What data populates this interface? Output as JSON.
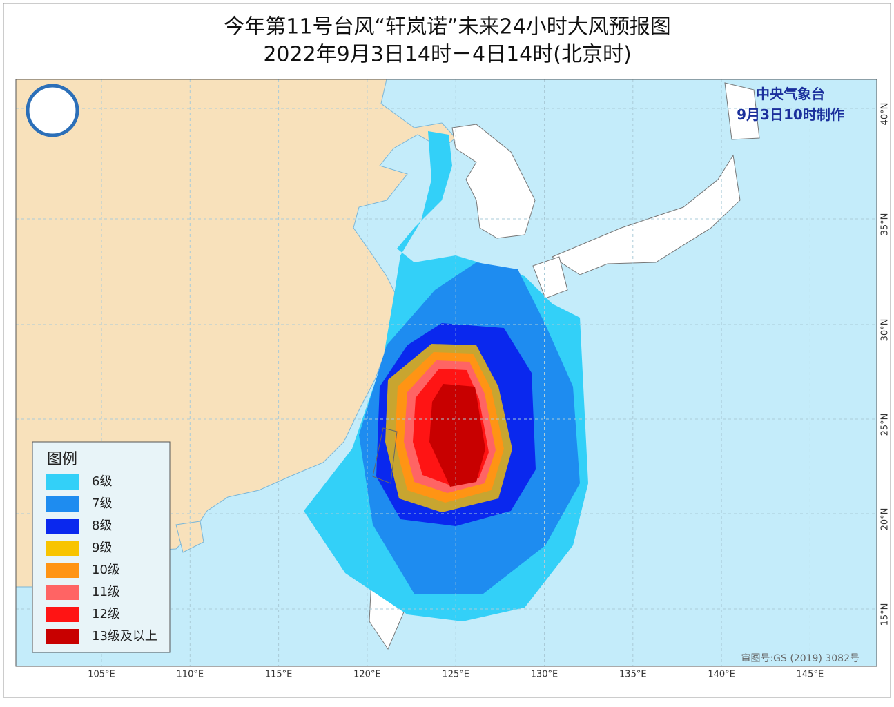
{
  "header": {
    "title": "今年第11号台风“轩岚诺”未来24小时大风预报图",
    "subtitle": "2022年9月3日14时－4日14时(北京时)"
  },
  "issuer": {
    "agency": "中央气象台",
    "issued": "9月3日10时制作"
  },
  "legend": {
    "title": "图例",
    "items": [
      {
        "label": "6级",
        "color": "#33d0f8"
      },
      {
        "label": "7级",
        "color": "#1e8cf0"
      },
      {
        "label": "8级",
        "color": "#0a28ee"
      },
      {
        "label": "9级",
        "color": "#f8c400"
      },
      {
        "label": "10级",
        "color": "#ff9414"
      },
      {
        "label": "11级",
        "color": "#ff6464"
      },
      {
        "label": "12级",
        "color": "#ff1414"
      },
      {
        "label": "13级及以上",
        "color": "#c80000"
      }
    ]
  },
  "axes": {
    "longitudes": [
      "105°E",
      "110°E",
      "115°E",
      "120°E",
      "125°E",
      "130°E",
      "135°E",
      "140°E",
      "145°E"
    ],
    "latitudes": [
      "40°N",
      "35°N",
      "30°N",
      "25°N",
      "20°N",
      "15°N"
    ]
  },
  "footer": {
    "approval": "审图号:GS (2019) 3082号"
  }
}
